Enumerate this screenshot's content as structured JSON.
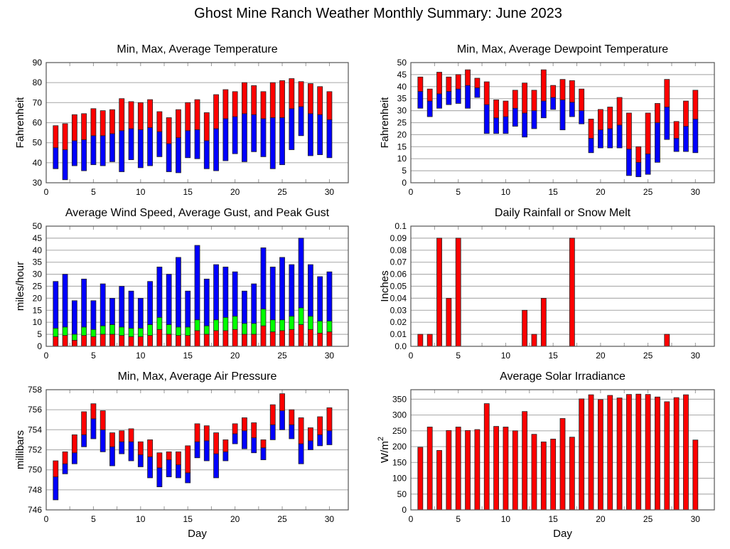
{
  "title": "Ghost Mine Ranch Weather Monthly Summary: June 2023",
  "colors": {
    "red": "#ff0000",
    "blue": "#0000ff",
    "green": "#00ff00",
    "grid": "#b0b0b0",
    "frame": "#555555"
  },
  "chart_data": [
    {
      "id": "temperature",
      "type": "bar",
      "title": "Min, Max, Average Temperature",
      "xlabel": "",
      "ylabel": "Fahrenheit",
      "xlim": [
        0,
        32
      ],
      "ylim": [
        30,
        90
      ],
      "xticks": [
        0,
        5,
        10,
        15,
        20,
        25,
        30
      ],
      "yticks": [
        30,
        40,
        50,
        60,
        70,
        80,
        90
      ],
      "x": [
        1,
        2,
        3,
        4,
        5,
        6,
        7,
        8,
        9,
        10,
        11,
        12,
        13,
        14,
        15,
        16,
        17,
        18,
        19,
        20,
        21,
        22,
        23,
        24,
        25,
        26,
        27,
        28,
        29,
        30
      ],
      "series": [
        {
          "name": "Min",
          "values": [
            37,
            31.5,
            38.5,
            36,
            39,
            38.5,
            40.5,
            35.5,
            41.5,
            37.5,
            38.5,
            43,
            35.5,
            35,
            42.5,
            42,
            37,
            36,
            41,
            44.5,
            40.5,
            45.5,
            43,
            37,
            39,
            46.5,
            53.5,
            43.5,
            44,
            42.5
          ]
        },
        {
          "name": "Average",
          "color": "blue",
          "values": [
            47.5,
            46.5,
            51,
            51.5,
            53.5,
            53.5,
            54.5,
            56,
            57,
            56.5,
            57.5,
            55.5,
            49.5,
            52.5,
            56,
            56.5,
            51,
            57,
            62,
            63,
            64.5,
            64,
            62,
            62.5,
            62.5,
            67,
            68,
            64.5,
            64,
            61.5
          ]
        },
        {
          "name": "Max",
          "color": "red",
          "values": [
            58.5,
            59.5,
            64,
            64.5,
            67,
            66,
            66.5,
            72,
            70.5,
            70,
            71.5,
            65.5,
            62.5,
            66.5,
            70,
            71.5,
            65,
            74,
            76.5,
            75.5,
            80,
            78.5,
            75.5,
            80,
            81,
            82,
            80.5,
            79.5,
            78,
            75.5
          ]
        }
      ]
    },
    {
      "id": "dewpoint",
      "type": "bar",
      "title": "Min, Max, Average Dewpoint Temperature",
      "xlabel": "",
      "ylabel": "Fahrenheit",
      "xlim": [
        0,
        32
      ],
      "ylim": [
        0,
        50
      ],
      "xticks": [
        0,
        5,
        10,
        15,
        20,
        25,
        30
      ],
      "yticks": [
        0,
        5,
        10,
        15,
        20,
        25,
        30,
        35,
        40,
        45,
        50
      ],
      "x": [
        1,
        2,
        3,
        4,
        5,
        6,
        7,
        8,
        9,
        10,
        11,
        12,
        13,
        14,
        15,
        16,
        17,
        18,
        19,
        20,
        21,
        22,
        23,
        24,
        25,
        26,
        27,
        28,
        29,
        30
      ],
      "series": [
        {
          "name": "Min",
          "values": [
            31,
            27.5,
            31,
            32.5,
            33,
            31,
            35.5,
            20.5,
            20.5,
            20.5,
            23.5,
            19,
            22.5,
            27,
            30.5,
            22,
            27.5,
            24.5,
            12.5,
            14.5,
            14.5,
            14.5,
            3,
            2.5,
            3.5,
            8.5,
            18,
            13,
            13,
            12.5
          ]
        },
        {
          "name": "Average",
          "color": "blue",
          "values": [
            38,
            34,
            37,
            38,
            39,
            40.5,
            39.5,
            32.5,
            27,
            27.5,
            31,
            29,
            30,
            34,
            35.5,
            34.5,
            33.5,
            30,
            18.5,
            22,
            22.5,
            24,
            14,
            8.5,
            12,
            25,
            31.5,
            18.5,
            23.5,
            26.5
          ]
        },
        {
          "name": "Max",
          "color": "red",
          "values": [
            44,
            39,
            46,
            44,
            45,
            47,
            43.5,
            42,
            34.5,
            34,
            38.5,
            41.5,
            38.5,
            47,
            40.5,
            43,
            42.5,
            39,
            26.5,
            30.5,
            31.5,
            35.5,
            29,
            15,
            29,
            33,
            43,
            25.5,
            34,
            38.5
          ]
        }
      ]
    },
    {
      "id": "wind",
      "type": "bar",
      "title": "Average Wind Speed, Average Gust, and Peak Gust",
      "xlabel": "",
      "ylabel": "miles/hour",
      "xlim": [
        0,
        32
      ],
      "ylim": [
        0,
        50
      ],
      "xticks": [
        0,
        5,
        10,
        15,
        20,
        25,
        30
      ],
      "yticks": [
        0,
        5,
        10,
        15,
        20,
        25,
        30,
        35,
        40,
        45,
        50
      ],
      "x": [
        1,
        2,
        3,
        4,
        5,
        6,
        7,
        8,
        9,
        10,
        11,
        12,
        13,
        14,
        15,
        16,
        17,
        18,
        19,
        20,
        21,
        22,
        23,
        24,
        25,
        26,
        27,
        28,
        29,
        30
      ],
      "series": [
        {
          "name": "Average Wind Speed",
          "color": "red",
          "values": [
            4,
            4.5,
            2.5,
            4.5,
            4,
            5,
            5,
            4.5,
            4,
            4,
            4.5,
            7,
            5,
            4.5,
            4.5,
            6.5,
            5,
            6.5,
            6.5,
            7,
            5,
            5,
            8.5,
            6,
            6.5,
            7,
            9,
            7,
            5.5,
            6
          ]
        },
        {
          "name": "Average Gust",
          "color": "green",
          "values": [
            7.5,
            8,
            5,
            8,
            7,
            8.5,
            9,
            8,
            7.5,
            7.5,
            9,
            12,
            9,
            8,
            8,
            11,
            8.5,
            11,
            12,
            12.5,
            9.5,
            9.5,
            15.5,
            11,
            11,
            12.5,
            16,
            12.5,
            10.5,
            10.5
          ]
        },
        {
          "name": "Peak Gust",
          "color": "blue",
          "values": [
            27,
            30,
            19,
            28,
            19,
            26,
            20,
            25,
            23,
            20,
            27,
            33,
            30,
            37,
            23,
            42,
            28,
            34,
            33,
            31,
            23,
            26,
            41,
            33,
            37,
            34,
            45,
            34,
            29,
            31
          ]
        }
      ]
    },
    {
      "id": "rainfall",
      "type": "bar",
      "title": "Daily Rainfall or Snow Melt",
      "xlabel": "",
      "ylabel": "Inches",
      "xlim": [
        0,
        32
      ],
      "ylim": [
        0,
        0.1
      ],
      "xticks": [
        0,
        5,
        10,
        15,
        20,
        25,
        30
      ],
      "yticks": [
        "0.0",
        "0.01",
        "0.02",
        "0.03",
        "0.04",
        "0.05",
        "0.06",
        "0.07",
        "0.08",
        "0.09",
        "0.1"
      ],
      "x": [
        1,
        2,
        3,
        4,
        5,
        6,
        7,
        8,
        9,
        10,
        11,
        12,
        13,
        14,
        15,
        16,
        17,
        18,
        19,
        20,
        21,
        22,
        23,
        24,
        25,
        26,
        27,
        28,
        29,
        30
      ],
      "series": [
        {
          "name": "Rainfall",
          "color": "red",
          "values": [
            0.01,
            0.01,
            0.09,
            0.04,
            0.09,
            0,
            0,
            0,
            0,
            0,
            0,
            0.03,
            0.01,
            0.04,
            0,
            0,
            0.09,
            0,
            0,
            0,
            0,
            0,
            0,
            0,
            0,
            0,
            0.01,
            0,
            0,
            0
          ]
        }
      ]
    },
    {
      "id": "pressure",
      "type": "bar",
      "title": "Min, Max, Average Air Pressure",
      "xlabel": "Day",
      "ylabel": "millibars",
      "xlim": [
        0,
        32
      ],
      "ylim": [
        746,
        758
      ],
      "xticks": [
        0,
        5,
        10,
        15,
        20,
        25,
        30
      ],
      "yticks": [
        746,
        748,
        750,
        752,
        754,
        756,
        758
      ],
      "x": [
        1,
        2,
        3,
        4,
        5,
        6,
        7,
        8,
        9,
        10,
        11,
        12,
        13,
        14,
        15,
        16,
        17,
        18,
        19,
        20,
        21,
        22,
        23,
        24,
        25,
        26,
        27,
        28,
        29,
        30
      ],
      "series": [
        {
          "name": "Min",
          "values": [
            747,
            749.6,
            750.6,
            752.3,
            753.1,
            751.8,
            750.4,
            751.6,
            750.9,
            750.3,
            749.2,
            748.3,
            749.3,
            749.2,
            748.7,
            751.2,
            750.9,
            749.2,
            750.9,
            752.6,
            752.1,
            751.7,
            751,
            753,
            754,
            753.1,
            750.6,
            752,
            752.4,
            752.5
          ]
        },
        {
          "name": "Average",
          "color": "blue",
          "values": [
            749.3,
            750.6,
            751.7,
            753.5,
            755.1,
            754,
            752.3,
            752.8,
            752.8,
            751.5,
            751.3,
            750.2,
            751,
            750.5,
            749.7,
            752.8,
            752.9,
            751.6,
            751.8,
            753.6,
            753.9,
            753.2,
            752.2,
            754.5,
            755.9,
            754.5,
            752.6,
            752.9,
            753.5,
            753.9
          ]
        },
        {
          "name": "Max",
          "color": "red",
          "values": [
            750.9,
            751.8,
            753.5,
            755.8,
            756.6,
            755.9,
            753.7,
            753.9,
            754.1,
            752.8,
            753,
            751.7,
            751.8,
            751.8,
            752.4,
            754.6,
            754.4,
            753.7,
            753,
            754.6,
            755.2,
            754.7,
            753,
            756.5,
            757.6,
            756,
            755.2,
            754.2,
            755.3,
            756.2
          ]
        }
      ]
    },
    {
      "id": "solar",
      "type": "bar",
      "title": "Average Solar Irradiance",
      "xlabel": "Day",
      "ylabel": "W/m",
      "ylabel_superscript": "2",
      "xlim": [
        0,
        32
      ],
      "ylim": [
        0,
        380
      ],
      "xticks": [
        0,
        5,
        10,
        15,
        20,
        25,
        30
      ],
      "yticks": [
        0,
        50,
        100,
        150,
        200,
        250,
        300,
        350
      ],
      "x": [
        1,
        2,
        3,
        4,
        5,
        6,
        7,
        8,
        9,
        10,
        11,
        12,
        13,
        14,
        15,
        16,
        17,
        18,
        19,
        20,
        21,
        22,
        23,
        24,
        25,
        26,
        27,
        28,
        29,
        30
      ],
      "series": [
        {
          "name": "Solar Irradiance",
          "color": "red",
          "values": [
            198,
            262,
            188,
            251,
            262,
            251,
            254,
            336,
            264,
            262,
            250,
            311,
            239,
            215,
            224,
            289,
            230,
            351,
            364,
            349,
            362,
            354,
            365,
            366,
            365,
            357,
            342,
            355,
            364,
            221
          ]
        }
      ]
    }
  ]
}
